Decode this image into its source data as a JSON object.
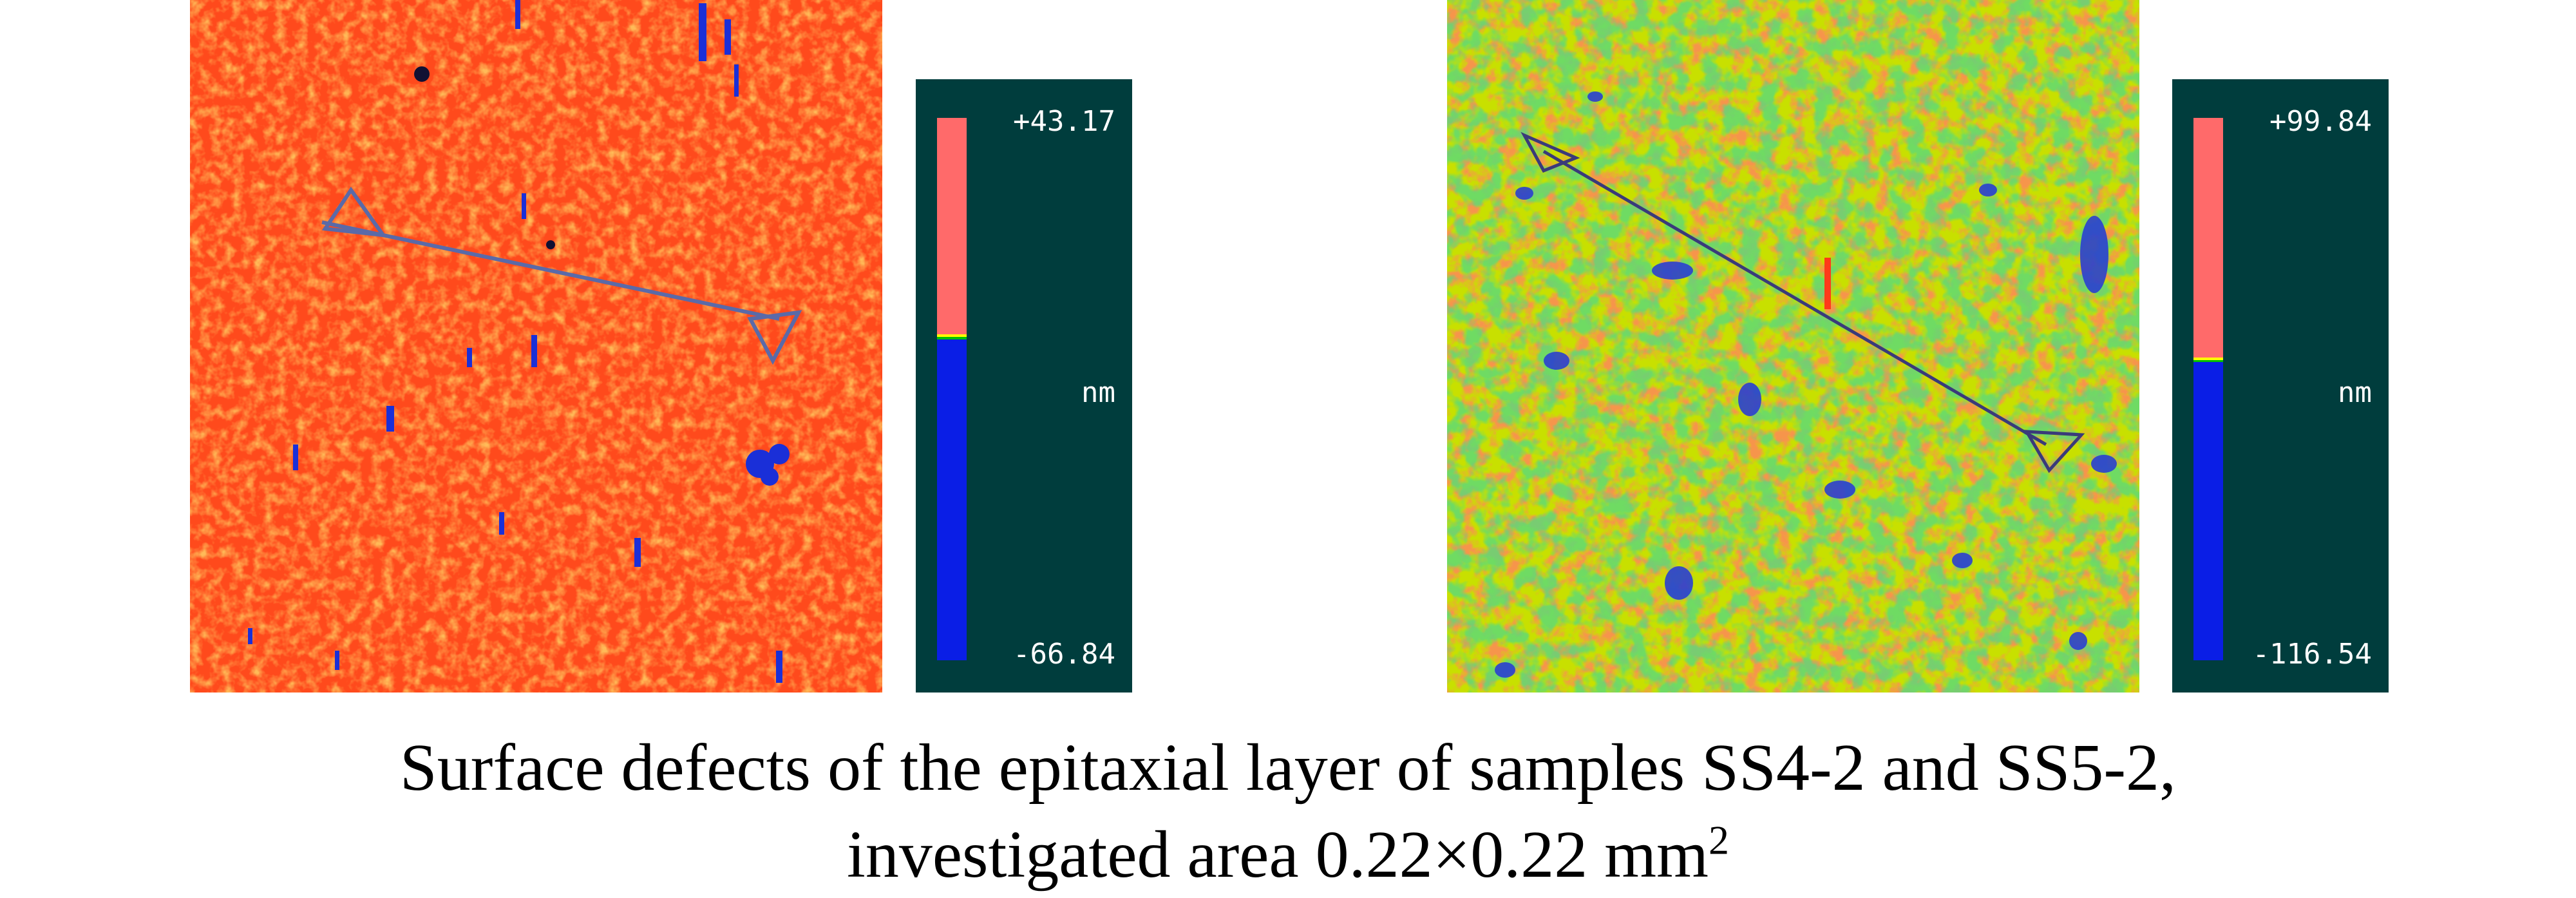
{
  "figures": [
    {
      "sample": "SS4-2",
      "colors": {
        "base": "#ff4a1c",
        "patch": "#ffb020",
        "defect": "#1a2fd8",
        "marker": "#5a6aa8"
      },
      "scale": {
        "max_label": "+43.17",
        "min_label": "-66.84",
        "unit": "nm",
        "max_value": 43.17,
        "min_value": -66.84
      }
    },
    {
      "sample": "SS5-2",
      "colors": {
        "base": "#c8e000",
        "patch": "#ff3a1a",
        "defect": "#2a3fd0",
        "marker": "#3a3a7a"
      },
      "scale": {
        "max_label": "+99.84",
        "min_label": "-116.54",
        "unit": "nm",
        "max_value": 99.84,
        "min_value": -116.54
      }
    }
  ],
  "scale_colors": {
    "upper": "#ff6a6a",
    "lower": "#0a1ee6",
    "mid": [
      "#ffff00",
      "#00c000"
    ]
  },
  "caption": {
    "line1": "Surface defects of the epitaxial layer of samples SS4-2 and SS5-2,",
    "line2_text": "investigated area 0.22×0.22 mm",
    "line2_sup": "2"
  }
}
